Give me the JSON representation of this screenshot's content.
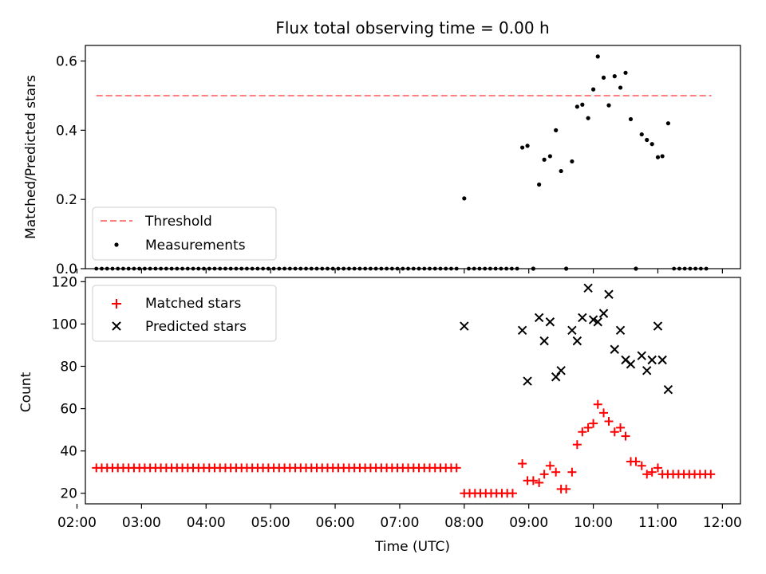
{
  "chart_data": [
    {
      "type": "scatter",
      "title": "Flux total observing time = 0.00 h",
      "ylabel": "Matched/Predicted stars",
      "ylim": [
        0,
        0.645
      ],
      "xlim": [
        2.13,
        12.28
      ],
      "yticks": [
        0,
        0.2,
        0.4,
        0.6
      ],
      "ytick_labels": [
        "0.0",
        "0.2",
        "0.4",
        "0.6"
      ],
      "legend_position": "lower-left",
      "threshold": {
        "name": "Threshold",
        "value": 0.5,
        "x_range": [
          2.3,
          11.83
        ],
        "color": "#ff7f7f"
      },
      "series": [
        {
          "name": "Measurements",
          "color": "#000000",
          "x": [
            8.0,
            8.9,
            8.98,
            9.07,
            9.16,
            9.24,
            9.33,
            9.42,
            9.5,
            9.58,
            9.67,
            9.75,
            9.83,
            9.92,
            10.0,
            10.07,
            10.16,
            10.24,
            10.33,
            10.42,
            10.5,
            10.58,
            10.66,
            10.75,
            10.83,
            10.91,
            11.0,
            11.07,
            11.16
          ],
          "y": [
            0.203,
            0.35,
            0.355,
            0.0,
            0.243,
            0.315,
            0.325,
            0.4,
            0.282,
            0.0,
            0.31,
            0.468,
            0.474,
            0.435,
            0.518,
            0.613,
            0.552,
            0.472,
            0.556,
            0.523,
            0.566,
            0.432,
            0.0,
            0.388,
            0.372,
            0.36,
            0.322,
            0.325,
            0.42
          ]
        }
      ],
      "zero_rows": [
        {
          "x_start": 2.3,
          "x_end": 7.9,
          "step": 0.0833
        },
        {
          "x_start": 8.07,
          "x_end": 8.83,
          "step": 0.0833
        },
        {
          "x_start": 11.25,
          "x_end": 11.83,
          "step": 0.0833
        }
      ]
    },
    {
      "type": "scatter",
      "xlabel": "Time (UTC)",
      "ylabel": "Count",
      "ylim": [
        15,
        122
      ],
      "xlim": [
        2.13,
        12.28
      ],
      "yticks": [
        20,
        40,
        60,
        80,
        100,
        120
      ],
      "ytick_labels": [
        "20",
        "40",
        "60",
        "80",
        "100",
        "120"
      ],
      "xticks": [
        2,
        3,
        4,
        5,
        6,
        7,
        8,
        9,
        10,
        11,
        12
      ],
      "xtick_labels": [
        "02:00",
        "03:00",
        "04:00",
        "05:00",
        "06:00",
        "07:00",
        "08:00",
        "09:00",
        "10:00",
        "11:00",
        "12:00"
      ],
      "legend_position": "top-left",
      "series": [
        {
          "name": "Matched stars",
          "marker": "plus",
          "color": "#ff0000",
          "constant_runs": [
            {
              "x_start": 2.3,
              "x_end": 7.9,
              "step": 0.0833,
              "y": 32
            },
            {
              "x_start": 8.0,
              "x_end": 8.83,
              "step": 0.0833,
              "y": 20
            },
            {
              "x_start": 11.07,
              "x_end": 11.83,
              "step": 0.0833,
              "y": 29
            }
          ],
          "x": [
            8.9,
            8.98,
            9.07,
            9.16,
            9.24,
            9.33,
            9.42,
            9.5,
            9.58,
            9.67,
            9.75,
            9.83,
            9.92,
            10.0,
            10.07,
            10.16,
            10.24,
            10.33,
            10.42,
            10.5,
            10.58,
            10.66,
            10.75,
            10.83,
            10.91,
            11.0
          ],
          "y": [
            34,
            26,
            26,
            25,
            29,
            33,
            30,
            22,
            22,
            30,
            43,
            49,
            51,
            53,
            62,
            58,
            54,
            49,
            51,
            47,
            35,
            35,
            33,
            29,
            30,
            32
          ]
        },
        {
          "name": "Predicted stars",
          "marker": "x",
          "color": "#000000",
          "x": [
            8.0,
            8.9,
            8.98,
            9.16,
            9.24,
            9.33,
            9.42,
            9.5,
            9.67,
            9.75,
            9.83,
            9.92,
            10.0,
            10.07,
            10.16,
            10.24,
            10.33,
            10.42,
            10.5,
            10.58,
            10.75,
            10.83,
            10.91,
            11.0,
            11.07,
            11.16
          ],
          "y": [
            99,
            97,
            73,
            103,
            92,
            101,
            75,
            78,
            97,
            92,
            103,
            117,
            102,
            101,
            105,
            114,
            88,
            97,
            83,
            81,
            85,
            78,
            83,
            99,
            83,
            69
          ]
        }
      ]
    }
  ]
}
